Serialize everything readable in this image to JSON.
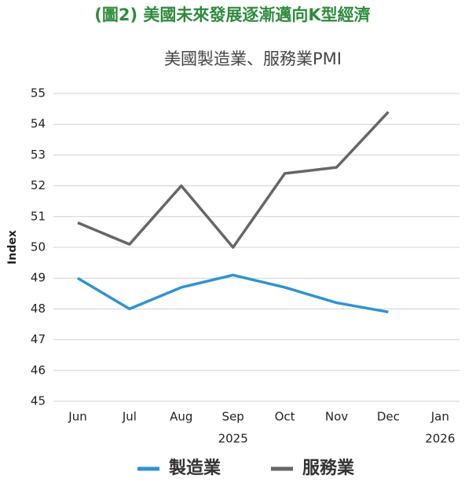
{
  "header": {
    "title": "(圖2) 美國未來發展逐漸邁向K型經濟"
  },
  "chart_data": {
    "type": "line",
    "title": "美國製造業、服務業PMI",
    "y_label": "Index",
    "categories": [
      "Jun",
      "Jul",
      "Aug",
      "Sep",
      "Oct",
      "Nov",
      "Dec",
      "Jan"
    ],
    "year_labels": [
      null,
      null,
      null,
      "2025",
      null,
      null,
      null,
      "2026"
    ],
    "series": [
      {
        "name": "製造業",
        "color": "#2f93d1",
        "values": [
          49.0,
          48.0,
          48.7,
          49.1,
          48.7,
          48.2,
          47.9,
          null
        ]
      },
      {
        "name": "服務業",
        "color": "#666666",
        "values": [
          50.8,
          50.1,
          52.0,
          50.0,
          52.4,
          52.6,
          54.4,
          null
        ]
      }
    ],
    "ylim": [
      45,
      55
    ],
    "yticks": [
      45,
      46,
      47,
      48,
      49,
      50,
      51,
      52,
      53,
      54,
      55
    ],
    "grid": true,
    "legend": "bottom"
  }
}
